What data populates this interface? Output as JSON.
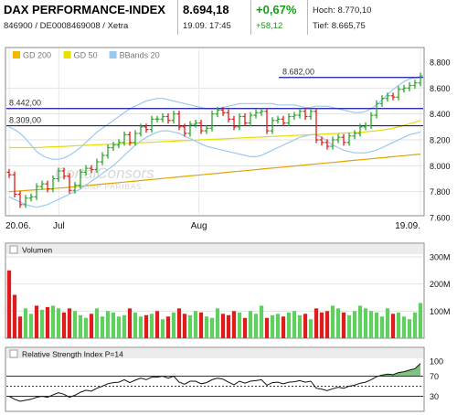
{
  "header": {
    "title": "DAX PERFORMANCE-INDEX",
    "id_line": "846900 / DE0008469008 / Xetra",
    "price": "8.694,18",
    "datetime": "19.09. 17:45",
    "change_pct": "+0,67%",
    "change_abs": "+58,12",
    "high": "Hoch: 8.770,10",
    "low": "Tief: 8.665,75",
    "change_color": "#1a9a1a"
  },
  "legend": [
    {
      "label": "GD 200",
      "color": "#f2b800"
    },
    {
      "label": "GD 50",
      "color": "#e8e000"
    },
    {
      "label": "BBands 20",
      "color": "#9cc8ef"
    }
  ],
  "watermark": {
    "line1": "CortalConsors",
    "line2": "BNP PARIBAS"
  },
  "colors": {
    "up": "#2aa62a",
    "down": "#e01b1b",
    "hline": "#1a1aa0"
  },
  "chart_data": [
    {
      "type": "candlestick",
      "y_ticks": [
        "8.800",
        "8.600",
        "8.400",
        "8.200",
        "8.000",
        "7.800",
        "7.600"
      ],
      "y_tick_values": [
        8800,
        8600,
        8400,
        8200,
        8000,
        7800,
        7600
      ],
      "ylim": [
        7600,
        8800
      ],
      "x_labels": [
        "20.06.",
        "Jul",
        "Aug",
        "19.09."
      ],
      "x_label_dates": [
        "2013-06-20",
        "2013-07-01",
        "2013-08-01",
        "2013-09-19"
      ],
      "horizontal_lines": [
        {
          "label": "8.682,00",
          "value": 8682
        },
        {
          "label": "8.442,00",
          "value": 8442
        },
        {
          "label": "8.309,00",
          "value": 8309
        }
      ],
      "closes": [
        7930,
        7780,
        7700,
        7750,
        7760,
        7840,
        7860,
        7820,
        7900,
        7960,
        7920,
        7810,
        7850,
        7950,
        7980,
        7970,
        8030,
        8080,
        8140,
        8160,
        8180,
        8240,
        8180,
        8250,
        8300,
        8280,
        8360,
        8360,
        8380,
        8350,
        8400,
        8300,
        8250,
        8320,
        8330,
        8270,
        8290,
        8400,
        8430,
        8410,
        8360,
        8300,
        8380,
        8330,
        8390,
        8410,
        8420,
        8270,
        8350,
        8360,
        8330,
        8380,
        8390,
        8420,
        8380,
        8420,
        8200,
        8180,
        8150,
        8200,
        8220,
        8180,
        8230,
        8250,
        8300,
        8310,
        8390,
        8480,
        8520,
        8540,
        8530,
        8590,
        8600,
        8620,
        8640,
        8694
      ],
      "series": [
        {
          "name": "GD 200",
          "values": [
            7800,
            7803,
            7806,
            7809,
            7812,
            7815,
            7818,
            7821,
            7824,
            7827,
            7830,
            7834,
            7838,
            7842,
            7846,
            7850,
            7854,
            7858,
            7862,
            7866,
            7870,
            7874,
            7878,
            7882,
            7886,
            7890,
            7894,
            7898,
            7902,
            7906,
            7910,
            7914,
            7918,
            7922,
            7926,
            7930,
            7934,
            7938,
            7942,
            7946,
            7950,
            7954,
            7958,
            7962,
            7966,
            7970,
            7974,
            7978,
            7982,
            7986,
            7990,
            7994,
            7998,
            8002,
            8006,
            8010,
            8014,
            8018,
            8022,
            8026,
            8030,
            8034,
            8038,
            8042,
            8046,
            8050,
            8054,
            8058,
            8062,
            8066,
            8070,
            8074,
            8078,
            8082,
            8086,
            8090
          ]
        },
        {
          "name": "GD 50",
          "values": [
            8140,
            8140,
            8140,
            8140,
            8140,
            8140,
            8142,
            8144,
            8146,
            8148,
            8150,
            8152,
            8154,
            8156,
            8158,
            8160,
            8162,
            8164,
            8166,
            8168,
            8170,
            8172,
            8174,
            8176,
            8178,
            8180,
            8182,
            8184,
            8186,
            8188,
            8190,
            8192,
            8194,
            8196,
            8198,
            8200,
            8202,
            8204,
            8206,
            8208,
            8210,
            8212,
            8214,
            8216,
            8218,
            8220,
            8222,
            8224,
            8226,
            8228,
            8230,
            8232,
            8234,
            8236,
            8238,
            8240,
            8242,
            8244,
            8246,
            8248,
            8250,
            8252,
            8254,
            8256,
            8258,
            8262,
            8266,
            8270,
            8276,
            8282,
            8290,
            8300,
            8312,
            8324,
            8336,
            8350
          ]
        },
        {
          "name": "BBands 20",
          "values": [
            8300,
            8280,
            8250,
            8210,
            8160,
            8110,
            8080,
            8060,
            8050,
            8050,
            8060,
            8080,
            8110,
            8140,
            8180,
            8220,
            8260,
            8290,
            8320,
            8350,
            8380,
            8410,
            8440,
            8460,
            8480,
            8500,
            8510,
            8520,
            8520,
            8510,
            8500,
            8490,
            8480,
            8470,
            8460,
            8450,
            8440,
            8440,
            8440,
            8450,
            8460,
            8470,
            8480,
            8480,
            8480,
            8480,
            8480,
            8480,
            8480,
            8470,
            8470,
            8470,
            8470,
            8460,
            8450,
            8450,
            8460,
            8460,
            8460,
            8450,
            8440,
            8430,
            8420,
            8410,
            8410,
            8420,
            8440,
            8470,
            8510,
            8550,
            8590,
            8620,
            8650,
            8670,
            8680,
            8690
          ]
        },
        {
          "name": "BBands 20 lower",
          "values": [
            7760,
            7740,
            7720,
            7700,
            7690,
            7680,
            7690,
            7700,
            7720,
            7740,
            7760,
            7780,
            7800,
            7820,
            7850,
            7880,
            7910,
            7940,
            7970,
            8000,
            8040,
            8080,
            8120,
            8160,
            8190,
            8220,
            8240,
            8260,
            8270,
            8270,
            8260,
            8250,
            8230,
            8210,
            8190,
            8170,
            8150,
            8140,
            8130,
            8120,
            8110,
            8100,
            8090,
            8080,
            8070,
            8070,
            8080,
            8100,
            8120,
            8140,
            8160,
            8180,
            8200,
            8220,
            8230,
            8240,
            8240,
            8220,
            8190,
            8160,
            8140,
            8120,
            8110,
            8100,
            8100,
            8100,
            8110,
            8120,
            8140,
            8160,
            8180,
            8200,
            8220,
            8240,
            8250,
            8260
          ]
        }
      ]
    },
    {
      "type": "bar",
      "title": "Volumen",
      "y_ticks": [
        "300M",
        "200M",
        "100M"
      ],
      "y_tick_values": [
        300,
        200,
        100
      ],
      "ylim": [
        0,
        300
      ],
      "values": [
        250,
        160,
        80,
        110,
        90,
        120,
        105,
        115,
        120,
        110,
        95,
        110,
        100,
        85,
        75,
        90,
        110,
        80,
        100,
        95,
        80,
        85,
        110,
        95,
        80,
        85,
        90,
        100,
        70,
        80,
        95,
        110,
        90,
        85,
        100,
        95,
        80,
        75,
        110,
        90,
        85,
        100,
        95,
        75,
        100,
        90,
        120,
        75,
        85,
        90,
        80,
        95,
        100,
        85,
        90,
        70,
        110,
        95,
        100,
        120,
        110,
        95,
        85,
        100,
        120,
        110,
        100,
        95,
        80,
        110,
        90,
        95,
        80,
        70,
        95,
        130
      ],
      "directions": [
        "down",
        "down",
        "down",
        "up",
        "up",
        "down",
        "up",
        "down",
        "up",
        "up",
        "down",
        "down",
        "up",
        "up",
        "up",
        "down",
        "up",
        "up",
        "up",
        "up",
        "up",
        "up",
        "down",
        "up",
        "up",
        "down",
        "up",
        "down",
        "up",
        "down",
        "up",
        "down",
        "down",
        "up",
        "up",
        "down",
        "up",
        "up",
        "up",
        "down",
        "down",
        "down",
        "up",
        "down",
        "up",
        "up",
        "up",
        "down",
        "up",
        "up",
        "down",
        "up",
        "up",
        "up",
        "down",
        "up",
        "down",
        "down",
        "down",
        "up",
        "up",
        "down",
        "up",
        "up",
        "up",
        "up",
        "up",
        "up",
        "up",
        "up",
        "down",
        "up",
        "up",
        "up",
        "up",
        "up"
      ]
    },
    {
      "type": "line",
      "title": "Relative Strength Index P=14",
      "y_ticks": [
        "100",
        "70",
        "30"
      ],
      "y_tick_values": [
        100,
        70,
        30
      ],
      "ylim": [
        0,
        100
      ],
      "reference_lines": [
        70,
        50,
        30
      ],
      "values": [
        30,
        24,
        20,
        22,
        24,
        28,
        30,
        28,
        33,
        37,
        34,
        28,
        32,
        38,
        42,
        40,
        46,
        50,
        55,
        57,
        58,
        63,
        57,
        62,
        66,
        63,
        68,
        68,
        70,
        66,
        70,
        58,
        54,
        60,
        60,
        55,
        57,
        63,
        66,
        64,
        58,
        53,
        60,
        56,
        60,
        61,
        63,
        52,
        57,
        58,
        55,
        58,
        59,
        61,
        58,
        60,
        46,
        44,
        41,
        45,
        48,
        46,
        50,
        52,
        56,
        58,
        63,
        69,
        72,
        74,
        73,
        77,
        79,
        82,
        85,
        95
      ]
    }
  ]
}
